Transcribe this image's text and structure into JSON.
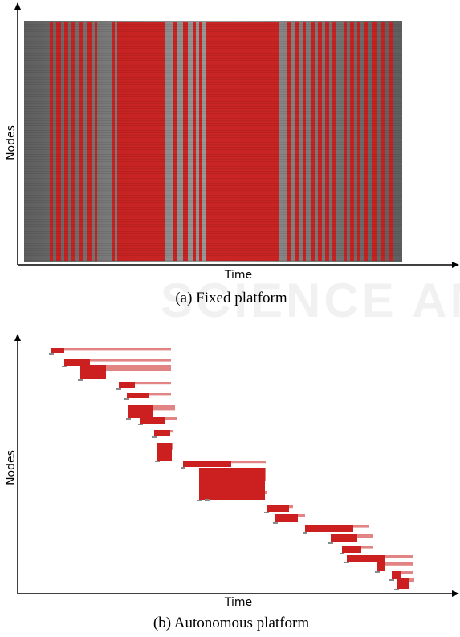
{
  "chart_data": [
    {
      "type": "heatmap",
      "xlabel": "Time",
      "ylabel": "Nodes",
      "caption": "(a) Fixed platform",
      "colors": {
        "active": "#cc1f1f",
        "idle": "#8a8a8a"
      }
    },
    {
      "type": "heatmap",
      "xlabel": "Time",
      "ylabel": "Nodes",
      "caption": "(b) Autonomous platform",
      "colors": {
        "active": "#cc1f1f",
        "idle": "#8a8a8a"
      }
    }
  ],
  "watermark": "SCIENCE AND TECHN"
}
